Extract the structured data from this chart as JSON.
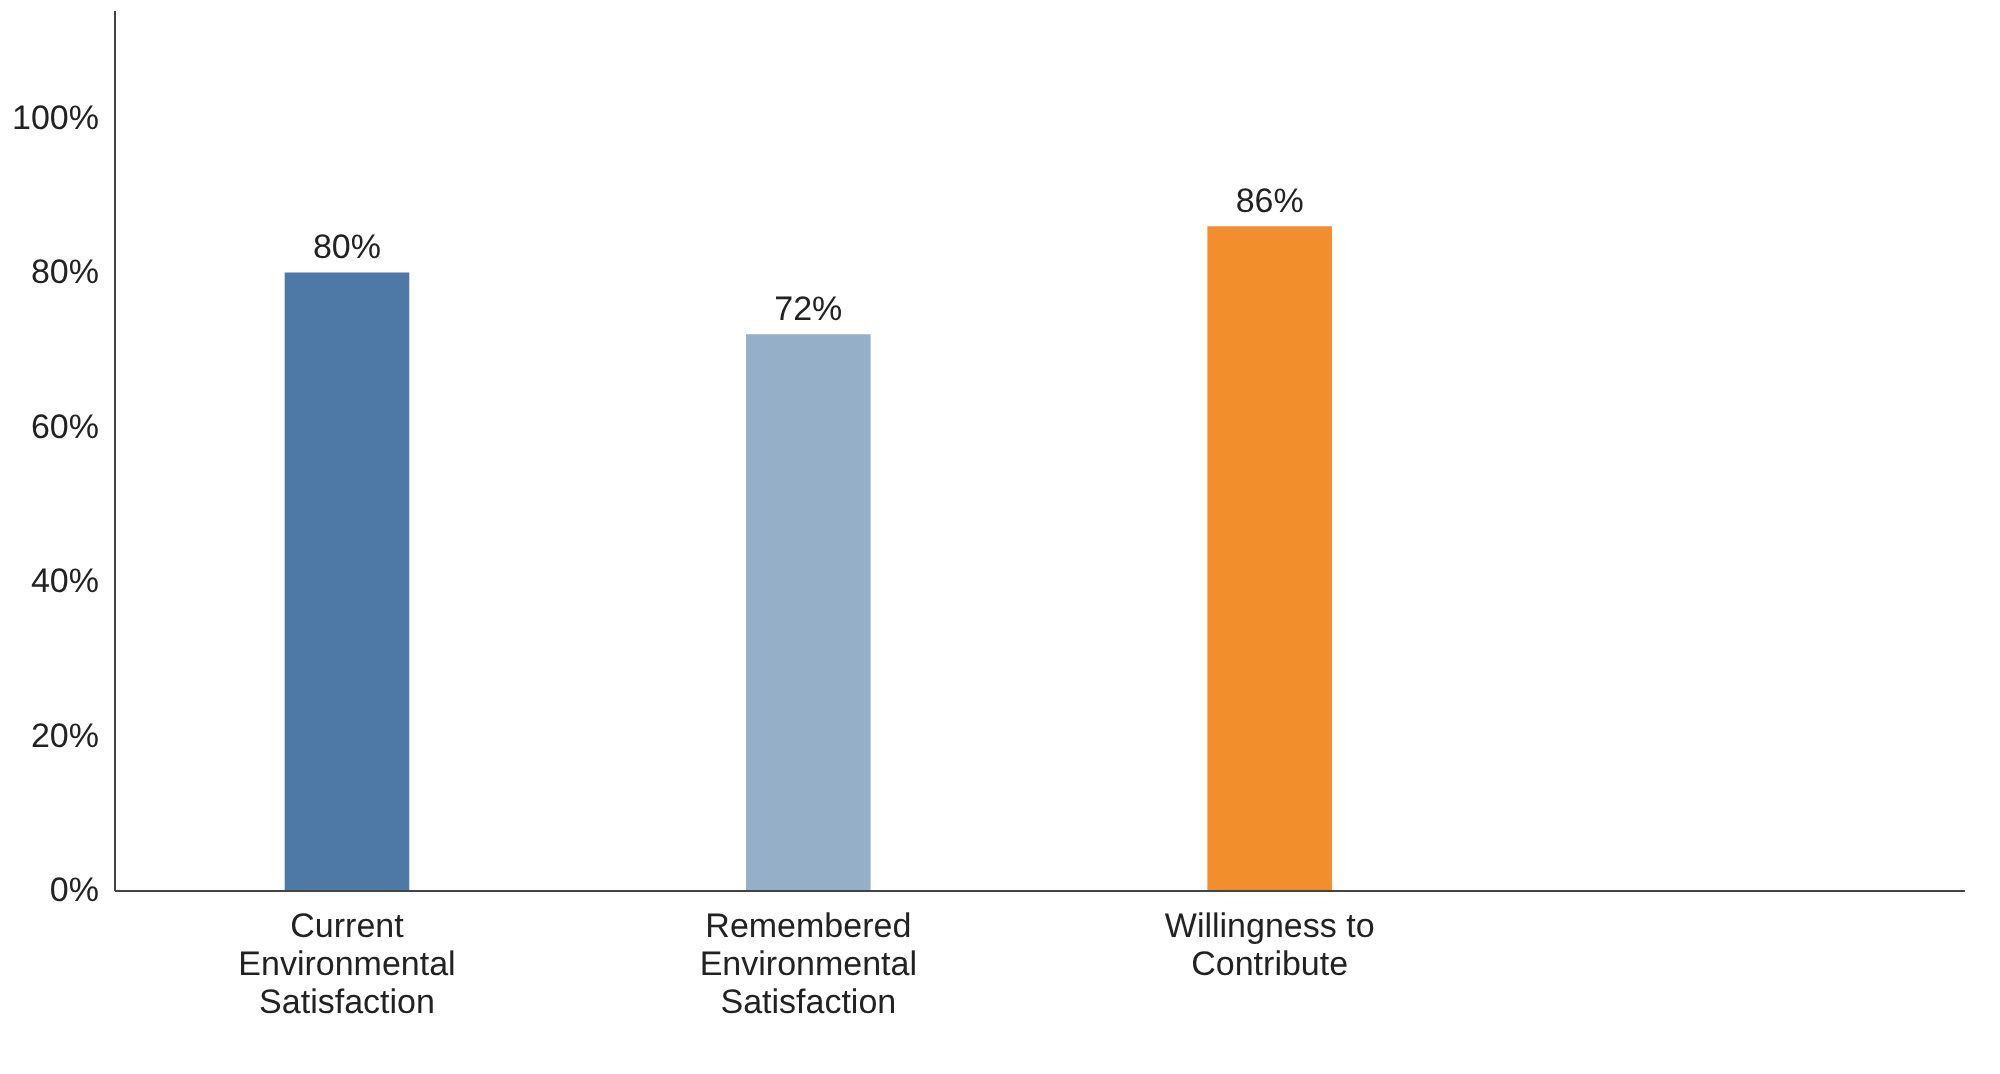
{
  "chart_data": {
    "type": "bar",
    "categories": [
      "Current Environmental Satisfaction",
      "Remembered Environmental Satisfaction",
      "Willingness to Contribute",
      null
    ],
    "values": [
      80,
      72,
      86,
      null
    ],
    "colors": [
      "#4e79a7",
      "#95afc9",
      "#f28e2b",
      "#cccccc"
    ],
    "ylim": [
      0,
      114
    ],
    "yticks": [
      {
        "value": 0,
        "label": "0%"
      },
      {
        "value": 20,
        "label": "20%"
      },
      {
        "value": 40,
        "label": "40%"
      },
      {
        "value": 60,
        "label": "60%"
      },
      {
        "value": 80,
        "label": "80%"
      },
      {
        "value": 100,
        "label": "100%"
      }
    ],
    "value_labels": [
      "80%",
      "72%",
      "86%",
      null
    ],
    "grid": false
  }
}
